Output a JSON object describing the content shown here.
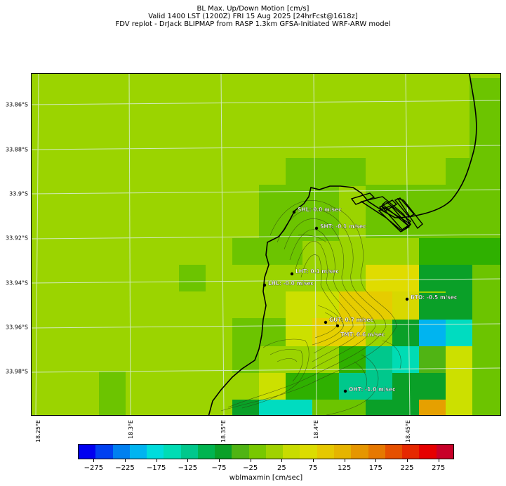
{
  "title": {
    "line1": "BL Max. Up/Down Motion [cm/s]",
    "line2": "Valid 1400 LST (1200Z) FRI 15 Aug 2025 [24hrFcst@1618z]",
    "line3": "FDV replot - DrJack BLIPMAP from RASP 1.3km GFSA-Initiated WRF-ARW model"
  },
  "axes": {
    "lat_labels": [
      "33.86°S",
      "33.88°S",
      "33.9°S",
      "33.92°S",
      "33.94°S",
      "33.96°S",
      "33.98°S"
    ],
    "lon_labels": [
      "18.25°E",
      "18.3°E",
      "18.35°E",
      "18.4°E",
      "18.45°E"
    ]
  },
  "stations": [
    {
      "label": "SHL: 0.0 m/sec"
    },
    {
      "label": "SHT: -0.1 m/sec"
    },
    {
      "label": "LHT: 0.1 m/sec"
    },
    {
      "label": "LHL: -0.0 m/sec"
    },
    {
      "label": "BTO: -0.5 m/sec"
    },
    {
      "label": "GUT: 0.7 m/sec"
    },
    {
      "label": "TMT: 0.6 m/sec"
    },
    {
      "label": "OHT: -1.0 m/sec"
    }
  ],
  "colorbar": {
    "label": "wblmaxmin [cm/sec]",
    "ticks": [
      "−275",
      "−225",
      "−175",
      "−125",
      "−75",
      "−25",
      "25",
      "75",
      "125",
      "175",
      "225",
      "275"
    ],
    "colors": [
      "#0000f0",
      "#0040f0",
      "#0080f0",
      "#00b4f0",
      "#00dcdc",
      "#00dcb4",
      "#00c88c",
      "#00b450",
      "#0aa028",
      "#50b414",
      "#78c800",
      "#a0d200",
      "#c8dc00",
      "#dcdc00",
      "#e6c800",
      "#e6b400",
      "#e69600",
      "#e67800",
      "#e65000",
      "#e62800",
      "#e60000",
      "#c80028"
    ]
  }
}
